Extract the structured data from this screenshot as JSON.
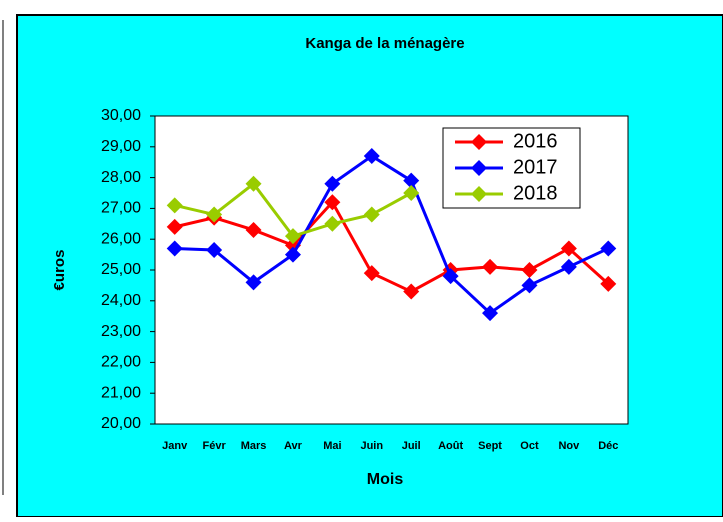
{
  "chart_data": {
    "type": "line",
    "title": "Kanga de la ménagère",
    "x_label": "Mois",
    "y_label": "€uros",
    "categories": [
      "Janv",
      "Févr",
      "Mars",
      "Avr",
      "Mai",
      "Juin",
      "Juil",
      "Août",
      "Sept",
      "Oct",
      "Nov",
      "Déc"
    ],
    "series": [
      {
        "name": "2016",
        "color": "#ff0000",
        "values": [
          26.4,
          26.7,
          26.3,
          25.8,
          27.2,
          24.9,
          24.3,
          25.0,
          25.1,
          25.0,
          25.7,
          24.55
        ]
      },
      {
        "name": "2017",
        "color": "#0000ff",
        "values": [
          25.7,
          25.65,
          24.6,
          25.5,
          27.8,
          28.7,
          27.9,
          24.8,
          23.6,
          24.5,
          25.1,
          25.7
        ]
      },
      {
        "name": "2018",
        "color": "#99cc00",
        "values": [
          27.1,
          26.8,
          27.8,
          26.1,
          26.5,
          26.8,
          27.5,
          null,
          null,
          null,
          null,
          null
        ]
      }
    ],
    "ylim": [
      20,
      30
    ],
    "yticks": [
      {
        "value": 20,
        "label": "20,00"
      },
      {
        "value": 21,
        "label": "21,00"
      },
      {
        "value": 22,
        "label": "22,00"
      },
      {
        "value": 23,
        "label": "23,00"
      },
      {
        "value": 24,
        "label": "24,00"
      },
      {
        "value": 25,
        "label": "25,00"
      },
      {
        "value": 26,
        "label": "26,00"
      },
      {
        "value": 27,
        "label": "27,00"
      },
      {
        "value": 28,
        "label": "28,00"
      },
      {
        "value": 29,
        "label": "29,00"
      },
      {
        "value": 30,
        "label": "30,00"
      }
    ],
    "legend": "top-right"
  }
}
